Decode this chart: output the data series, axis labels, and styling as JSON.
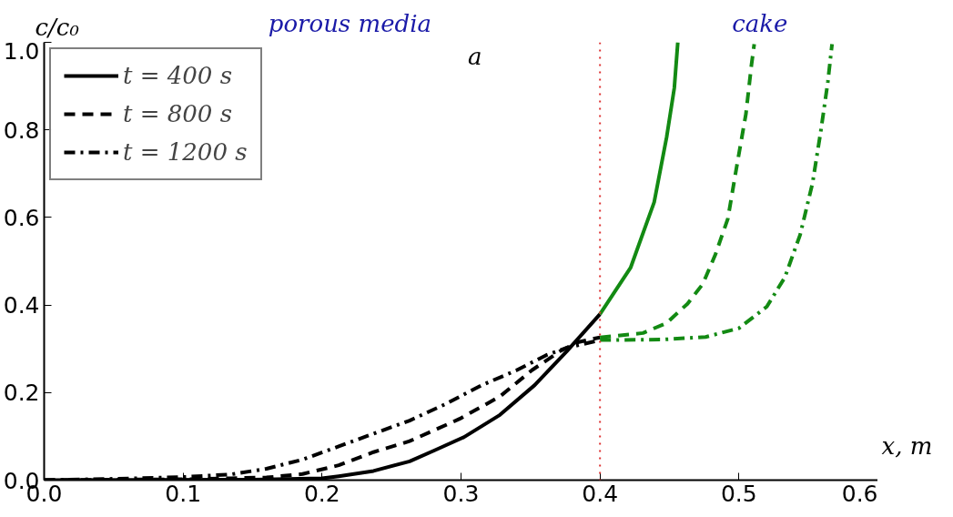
{
  "chart_data": {
    "type": "line",
    "xlabel": "x, m",
    "ylabel": "c/c₀",
    "annotations": [
      "porous media",
      "cake",
      "a"
    ],
    "xlim": [
      0,
      0.6
    ],
    "ylim": [
      0,
      1.0
    ],
    "xticks": [
      {
        "value": 0,
        "label": "0.0"
      },
      0.1,
      0.2,
      0.3,
      0.4,
      0.5,
      0.6
    ],
    "yticks": [
      {
        "value": 0,
        "label": "0.0"
      },
      0.2,
      0.4,
      0.6,
      0.8,
      {
        "value": 1.0,
        "label": "1.0"
      }
    ],
    "grid": false,
    "legend": "top left",
    "ref_lines": [
      {
        "axis": "x",
        "value": 0.4,
        "color": "#dd3333",
        "line_style": "dotted"
      }
    ],
    "series": [
      {
        "name": "t = 400 s",
        "color": "#000000",
        "line_style": "solid",
        "x": [
          0,
          0.15,
          0.2,
          0.212,
          0.237,
          0.263,
          0.281,
          0.302,
          0.328,
          0.353,
          0.376,
          0.4
        ],
        "values": [
          0,
          0.001,
          0.004,
          0.009,
          0.021,
          0.043,
          0.068,
          0.098,
          0.149,
          0.217,
          0.294,
          0.379
        ]
      },
      {
        "name": "t = 800 s",
        "color": "#000000",
        "line_style": "dashed",
        "x": [
          0,
          0.1,
          0.16,
          0.186,
          0.212,
          0.237,
          0.263,
          0.299,
          0.328,
          0.351,
          0.371,
          0.384,
          0.4
        ],
        "values": [
          0,
          0.002,
          0.006,
          0.014,
          0.034,
          0.064,
          0.089,
          0.14,
          0.191,
          0.251,
          0.294,
          0.315,
          0.326
        ]
      },
      {
        "name": "t = 1200 s",
        "color": "#000000",
        "line_style": "dashdot",
        "x": [
          0,
          0.05,
          0.1,
          0.134,
          0.16,
          0.186,
          0.212,
          0.237,
          0.263,
          0.289,
          0.315,
          0.34,
          0.361,
          0.376,
          0.4
        ],
        "values": [
          0,
          0.003,
          0.007,
          0.013,
          0.026,
          0.047,
          0.077,
          0.106,
          0.136,
          0.174,
          0.217,
          0.251,
          0.285,
          0.302,
          0.32
        ]
      },
      {
        "color": "#138a13",
        "line_style": "solid",
        "x": [
          0.4,
          0.422,
          0.439,
          0.448,
          0.4535,
          0.456
        ],
        "values": [
          0.379,
          0.485,
          0.635,
          0.784,
          0.896,
          1.0
        ]
      },
      {
        "color": "#138a13",
        "line_style": "dashed",
        "x": [
          0.4,
          0.431,
          0.448,
          0.463,
          0.474,
          0.483,
          0.492,
          0.498,
          0.505,
          0.509,
          0.511
        ],
        "values": [
          0.326,
          0.336,
          0.359,
          0.403,
          0.448,
          0.515,
          0.597,
          0.709,
          0.836,
          0.948,
          0.996
        ]
      },
      {
        "color": "#138a13",
        "line_style": "dashdot",
        "x": [
          0.4,
          0.444,
          0.476,
          0.5,
          0.52,
          0.533,
          0.544,
          0.553,
          0.559,
          0.564,
          0.567
        ],
        "values": [
          0.32,
          0.321,
          0.327,
          0.347,
          0.396,
          0.463,
          0.56,
          0.679,
          0.799,
          0.91,
          0.996
        ]
      }
    ]
  }
}
